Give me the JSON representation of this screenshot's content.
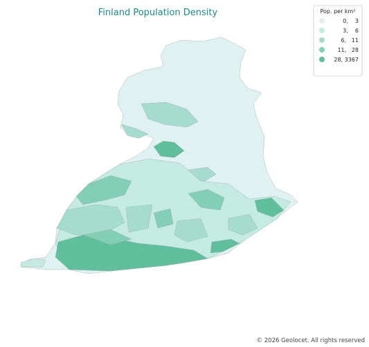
{
  "title": "Finland Population Density",
  "legend": {
    "title": "Pop. per km²",
    "entries": [
      {
        "label": "0,    3",
        "color": "#dff2f1"
      },
      {
        "label": "3,    6",
        "color": "#c4eae1"
      },
      {
        "label": "6,   11",
        "color": "#a5dccd"
      },
      {
        "label": "11,   28",
        "color": "#82cfb6"
      },
      {
        "label": "28, 3367",
        "color": "#5fbf9c"
      }
    ]
  },
  "footer": "© 2026 Geolocet. All rights reserved"
}
